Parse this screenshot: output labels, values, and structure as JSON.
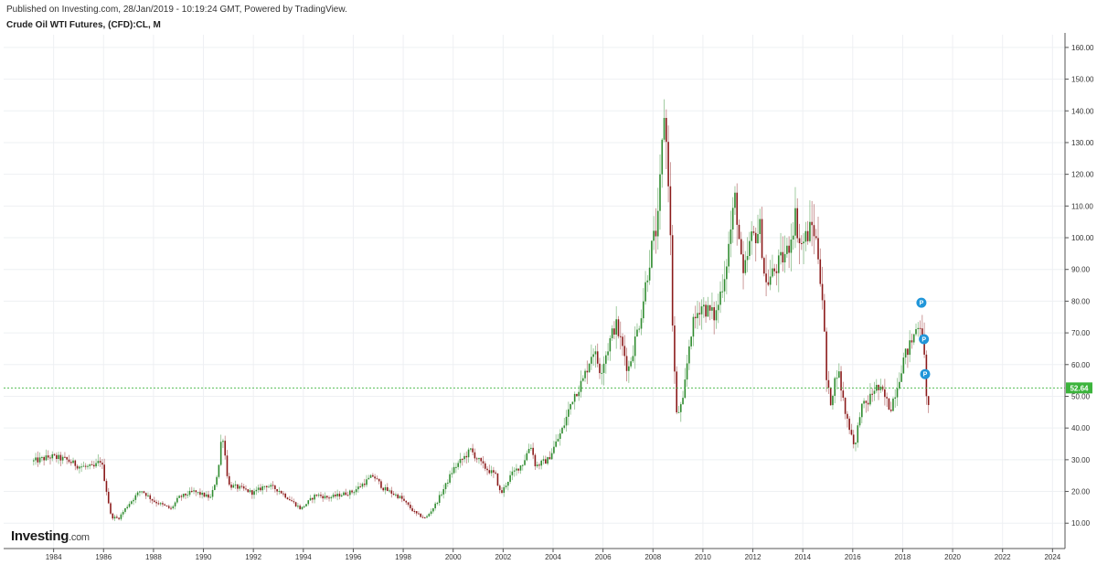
{
  "header": {
    "published": "Published on Investing.com, 28/Jan/2019 - 10:19:24 GMT, Powered by TradingView.",
    "title": "Crude Oil WTI Futures, (CFD):CL, M"
  },
  "logo": {
    "text": "Investing",
    "suffix": ".com"
  },
  "colors": {
    "up": "#2e8b2e",
    "down": "#8b1a1a",
    "grid": "#eef0f3",
    "last_line": "#3cb43c",
    "last_label_bg": "#3cb43c",
    "marker": "#2196d9"
  },
  "chart_data": {
    "type": "candlestick",
    "title": "Crude Oil WTI Futures, (CFD):CL, M",
    "interval": "monthly",
    "x_range": [
      1982.0,
      2024.5
    ],
    "y_range": [
      2,
      164
    ],
    "x_ticks": [
      "1984",
      "1986",
      "1988",
      "1990",
      "1992",
      "1994",
      "1996",
      "1998",
      "2000",
      "2002",
      "2004",
      "2006",
      "2008",
      "2010",
      "2012",
      "2014",
      "2016",
      "2018",
      "2020",
      "2022",
      "2024"
    ],
    "y_ticks": [
      "10.00",
      "20.00",
      "30.00",
      "40.00",
      "50.00",
      "60.00",
      "70.00",
      "80.00",
      "90.00",
      "100.00",
      "110.00",
      "120.00",
      "130.00",
      "140.00",
      "150.00",
      "160.00"
    ],
    "last_price": "52.64",
    "grid": true,
    "close_path": [
      [
        1983.2,
        29.5
      ],
      [
        1983.9,
        31.0
      ],
      [
        1984.5,
        30.0
      ],
      [
        1985.0,
        28.0
      ],
      [
        1985.6,
        27.5
      ],
      [
        1985.9,
        30.0
      ],
      [
        1986.3,
        12.0
      ],
      [
        1986.6,
        11.5
      ],
      [
        1987.0,
        16.0
      ],
      [
        1987.5,
        20.5
      ],
      [
        1988.0,
        17.0
      ],
      [
        1988.7,
        14.5
      ],
      [
        1989.0,
        18.0
      ],
      [
        1989.6,
        20.0
      ],
      [
        1990.3,
        18.0
      ],
      [
        1990.6,
        27.0
      ],
      [
        1990.75,
        39.5
      ],
      [
        1991.0,
        22.0
      ],
      [
        1991.5,
        21.0
      ],
      [
        1992.0,
        19.5
      ],
      [
        1992.5,
        22.0
      ],
      [
        1993.0,
        20.5
      ],
      [
        1993.9,
        14.5
      ],
      [
        1994.5,
        19.0
      ],
      [
        1995.0,
        18.0
      ],
      [
        1996.0,
        20.0
      ],
      [
        1996.8,
        25.0
      ],
      [
        1997.2,
        21.0
      ],
      [
        1997.9,
        18.0
      ],
      [
        1998.5,
        13.0
      ],
      [
        1998.9,
        11.5
      ],
      [
        1999.3,
        16.0
      ],
      [
        1999.7,
        22.0
      ],
      [
        2000.0,
        27.0
      ],
      [
        2000.7,
        33.0
      ],
      [
        2001.2,
        28.0
      ],
      [
        2001.7,
        25.0
      ],
      [
        2001.9,
        19.0
      ],
      [
        2002.3,
        25.0
      ],
      [
        2002.8,
        29.0
      ],
      [
        2003.1,
        35.0
      ],
      [
        2003.3,
        28.0
      ],
      [
        2003.8,
        30.0
      ],
      [
        2004.4,
        40.0
      ],
      [
        2004.8,
        50.0
      ],
      [
        2005.2,
        55.0
      ],
      [
        2005.6,
        65.0
      ],
      [
        2005.9,
        58.0
      ],
      [
        2006.5,
        73.0
      ],
      [
        2006.9,
        62.0
      ],
      [
        2007.0,
        58.0
      ],
      [
        2007.5,
        75.0
      ],
      [
        2007.9,
        95.0
      ],
      [
        2008.2,
        105.0
      ],
      [
        2008.45,
        140.0
      ],
      [
        2008.65,
        115.0
      ],
      [
        2008.8,
        68.0
      ],
      [
        2008.95,
        44.0
      ],
      [
        2009.2,
        48.0
      ],
      [
        2009.5,
        70.0
      ],
      [
        2009.9,
        79.0
      ],
      [
        2010.5,
        75.0
      ],
      [
        2010.9,
        90.0
      ],
      [
        2011.3,
        113.0
      ],
      [
        2011.6,
        86.0
      ],
      [
        2011.9,
        99.0
      ],
      [
        2012.3,
        103.0
      ],
      [
        2012.5,
        85.0
      ],
      [
        2012.9,
        90.0
      ],
      [
        2013.4,
        96.0
      ],
      [
        2013.7,
        107.0
      ],
      [
        2013.9,
        97.0
      ],
      [
        2014.4,
        104.0
      ],
      [
        2014.6,
        96.0
      ],
      [
        2014.8,
        80.0
      ],
      [
        2014.95,
        55.0
      ],
      [
        2015.1,
        48.0
      ],
      [
        2015.4,
        59.0
      ],
      [
        2015.7,
        45.0
      ],
      [
        2015.95,
        38.0
      ],
      [
        2016.1,
        34.0
      ],
      [
        2016.3,
        46.0
      ],
      [
        2016.6,
        48.0
      ],
      [
        2016.9,
        53.0
      ],
      [
        2017.2,
        51.0
      ],
      [
        2017.5,
        46.0
      ],
      [
        2017.8,
        54.0
      ],
      [
        2018.0,
        61.0
      ],
      [
        2018.4,
        68.0
      ],
      [
        2018.6,
        73.0
      ],
      [
        2018.75,
        73.0
      ],
      [
        2018.85,
        65.0
      ],
      [
        2018.92,
        51.0
      ],
      [
        2019.0,
        45.5
      ],
      [
        2019.08,
        52.64
      ]
    ],
    "markers": [
      {
        "label": "P",
        "x": 2018.75,
        "y": 79.5
      },
      {
        "label": "P",
        "x": 2018.85,
        "y": 68.0
      },
      {
        "label": "P",
        "x": 2018.9,
        "y": 57.0
      }
    ]
  }
}
